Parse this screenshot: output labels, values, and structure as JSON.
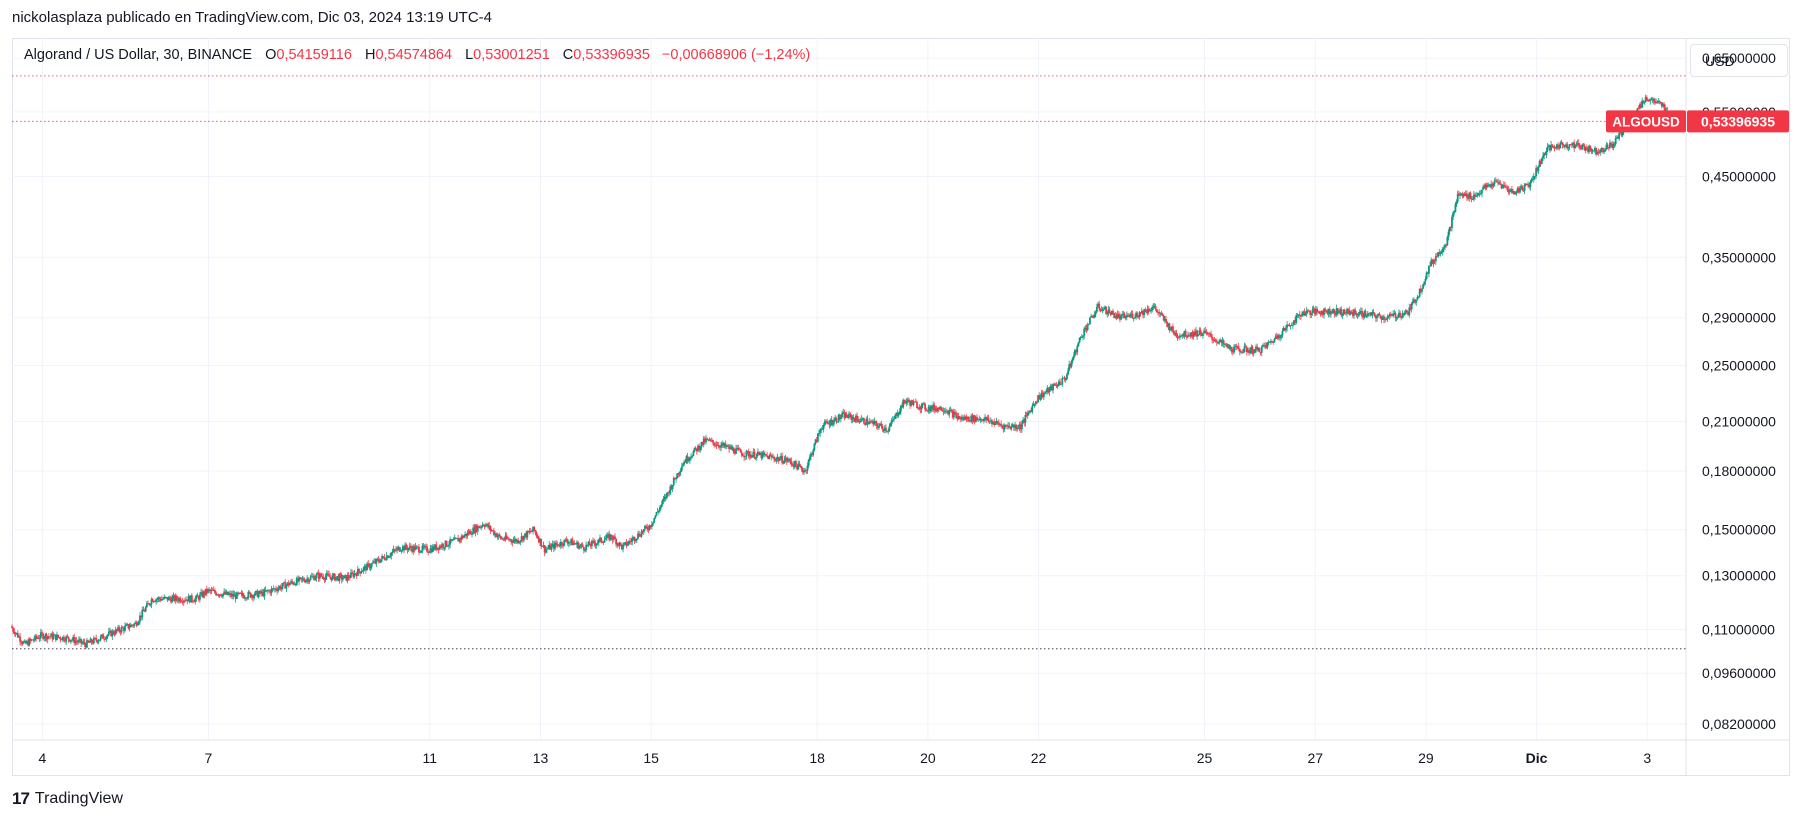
{
  "publisher_line": "nickolasplaza publicado en TradingView.com, Dic 03, 2024 13:19 UTC-4",
  "legend": {
    "symbol": "Algorand / US Dollar, 30, BINANCE",
    "o_label": "O",
    "o_value": "0,54159116",
    "h_label": "H",
    "h_value": "0,54574864",
    "l_label": "L",
    "l_value": "0,53001251",
    "c_label": "C",
    "c_value": "0,53396935",
    "change": "−0,00668906 (−1,24%)"
  },
  "currency": "USD",
  "footer": {
    "brand": "TradingView",
    "mark": "17"
  },
  "colors": {
    "up": "#089981",
    "down": "#f23645",
    "grid": "#f0f3fa",
    "axis_text": "#131722"
  },
  "chart_data": {
    "type": "candlestick",
    "title": "Algorand / US Dollar, 30, BINANCE",
    "scale": "log",
    "ylim": [
      0.078,
      0.69
    ],
    "y_ticks": [
      {
        "value": 0.65,
        "label": "0,65000000"
      },
      {
        "value": 0.55,
        "label": "0,55000000"
      },
      {
        "value": 0.45,
        "label": "0,45000000"
      },
      {
        "value": 0.35,
        "label": "0,35000000"
      },
      {
        "value": 0.29,
        "label": "0,29000000"
      },
      {
        "value": 0.25,
        "label": "0,25000000"
      },
      {
        "value": 0.21,
        "label": "0,21000000"
      },
      {
        "value": 0.18,
        "label": "0,18000000"
      },
      {
        "value": 0.15,
        "label": "0,15000000"
      },
      {
        "value": 0.13,
        "label": "0,13000000"
      },
      {
        "value": 0.11,
        "label": "0,11000000"
      },
      {
        "value": 0.096,
        "label": "0,09600000"
      },
      {
        "value": 0.082,
        "label": "0,08200000"
      }
    ],
    "x_ticks": [
      {
        "day": 4,
        "label": "4",
        "bold": false
      },
      {
        "day": 7,
        "label": "7",
        "bold": false
      },
      {
        "day": 11,
        "label": "11",
        "bold": false
      },
      {
        "day": 13,
        "label": "13",
        "bold": false
      },
      {
        "day": 15,
        "label": "15",
        "bold": false
      },
      {
        "day": 18,
        "label": "18",
        "bold": false
      },
      {
        "day": 20,
        "label": "20",
        "bold": false
      },
      {
        "day": 22,
        "label": "22",
        "bold": false
      },
      {
        "day": 25,
        "label": "25",
        "bold": false
      },
      {
        "day": 27,
        "label": "27",
        "bold": false
      },
      {
        "day": 29,
        "label": "29",
        "bold": false
      },
      {
        "day": 31,
        "label": "Dic",
        "bold": true
      },
      {
        "day": 33,
        "label": "3",
        "bold": false
      }
    ],
    "x_range_days": [
      3.45,
      33.7
    ],
    "price_path": [
      [
        3.45,
        0.111
      ],
      [
        3.7,
        0.105
      ],
      [
        4.0,
        0.108
      ],
      [
        4.5,
        0.107
      ],
      [
        4.8,
        0.105
      ],
      [
        5.3,
        0.109
      ],
      [
        5.7,
        0.112
      ],
      [
        6.0,
        0.121
      ],
      [
        6.8,
        0.121
      ],
      [
        7.0,
        0.124
      ],
      [
        7.5,
        0.122
      ],
      [
        8.0,
        0.123
      ],
      [
        8.5,
        0.127
      ],
      [
        9.0,
        0.13
      ],
      [
        9.5,
        0.129
      ],
      [
        10.0,
        0.135
      ],
      [
        10.5,
        0.142
      ],
      [
        11.0,
        0.141
      ],
      [
        11.5,
        0.145
      ],
      [
        12.0,
        0.153
      ],
      [
        12.3,
        0.146
      ],
      [
        12.6,
        0.145
      ],
      [
        12.9,
        0.15
      ],
      [
        13.1,
        0.141
      ],
      [
        13.5,
        0.145
      ],
      [
        13.8,
        0.142
      ],
      [
        14.3,
        0.147
      ],
      [
        14.5,
        0.142
      ],
      [
        15.0,
        0.152
      ],
      [
        15.3,
        0.167
      ],
      [
        15.6,
        0.185
      ],
      [
        16.0,
        0.198
      ],
      [
        16.2,
        0.196
      ],
      [
        16.7,
        0.19
      ],
      [
        17.0,
        0.189
      ],
      [
        17.5,
        0.186
      ],
      [
        17.8,
        0.18
      ],
      [
        18.1,
        0.207
      ],
      [
        18.5,
        0.214
      ],
      [
        19.0,
        0.209
      ],
      [
        19.3,
        0.205
      ],
      [
        19.6,
        0.224
      ],
      [
        20.0,
        0.219
      ],
      [
        20.3,
        0.219
      ],
      [
        20.6,
        0.212
      ],
      [
        21.0,
        0.212
      ],
      [
        21.4,
        0.207
      ],
      [
        21.7,
        0.207
      ],
      [
        22.0,
        0.226
      ],
      [
        22.5,
        0.24
      ],
      [
        22.8,
        0.275
      ],
      [
        23.1,
        0.3
      ],
      [
        23.5,
        0.29
      ],
      [
        23.8,
        0.293
      ],
      [
        24.1,
        0.3
      ],
      [
        24.5,
        0.275
      ],
      [
        25.0,
        0.277
      ],
      [
        25.5,
        0.263
      ],
      [
        26.0,
        0.262
      ],
      [
        26.2,
        0.268
      ],
      [
        26.8,
        0.295
      ],
      [
        27.3,
        0.296
      ],
      [
        27.8,
        0.294
      ],
      [
        28.3,
        0.29
      ],
      [
        28.7,
        0.295
      ],
      [
        28.9,
        0.314
      ],
      [
        29.1,
        0.342
      ],
      [
        29.4,
        0.368
      ],
      [
        29.6,
        0.425
      ],
      [
        29.9,
        0.423
      ],
      [
        30.1,
        0.435
      ],
      [
        30.3,
        0.442
      ],
      [
        30.6,
        0.428
      ],
      [
        30.9,
        0.44
      ],
      [
        31.2,
        0.49
      ],
      [
        31.5,
        0.497
      ],
      [
        31.8,
        0.495
      ],
      [
        32.1,
        0.487
      ],
      [
        32.4,
        0.497
      ],
      [
        32.7,
        0.536
      ],
      [
        33.0,
        0.575
      ],
      [
        33.3,
        0.56
      ],
      [
        33.45,
        0.534
      ]
    ],
    "level_lines": [
      {
        "value": 0.6152,
        "style": "dotted",
        "color": "#f23645"
      },
      {
        "value": 0.534,
        "style": "dotted",
        "color": "#f23645"
      },
      {
        "value": 0.1036,
        "style": "dotted",
        "color": "#131722"
      }
    ],
    "last_price": {
      "value": 0.534,
      "symbol": "ALGOUSD",
      "label": "0,53396935",
      "color": "#f23645"
    }
  }
}
